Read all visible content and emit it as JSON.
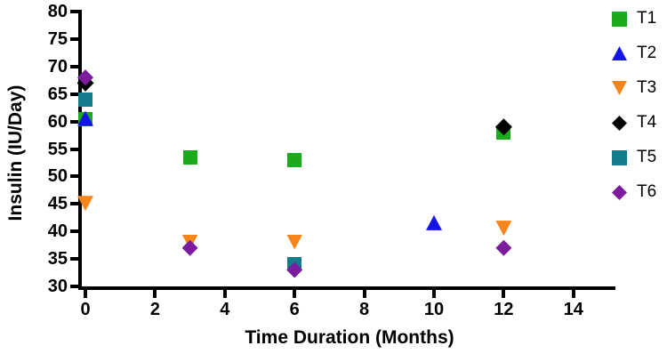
{
  "figure": {
    "background": "#ffffff",
    "axis_color": "#000000"
  },
  "chart_data": {
    "type": "scatter",
    "title": "",
    "xlabel": "Time Duration (Months)",
    "ylabel": "Insulin (IU/Day)",
    "xlim": [
      0,
      15
    ],
    "ylim": [
      30,
      80
    ],
    "grid": false,
    "legend_position": "right-outside",
    "x_ticks": [
      0,
      2,
      4,
      6,
      8,
      10,
      12,
      14
    ],
    "x_tick_labels": [
      "0",
      "2",
      "4",
      "6",
      "8",
      "10",
      "12",
      "14"
    ],
    "y_ticks": [
      80,
      75,
      70,
      65,
      60,
      55,
      50,
      45,
      40,
      35,
      30
    ],
    "y_tick_labels": [
      "80",
      "75",
      "70",
      "65",
      "60",
      "55",
      "50",
      "45",
      "40",
      "35",
      "30"
    ],
    "series": [
      {
        "name": "T1",
        "marker": "square",
        "color": "#1baa1b",
        "size": 16,
        "points": [
          [
            0,
            60.5
          ],
          [
            3,
            53.5
          ],
          [
            6,
            53
          ],
          [
            12,
            58
          ]
        ]
      },
      {
        "name": "T2",
        "marker": "triangle-up",
        "color": "#1414e8",
        "size": 18,
        "points": [
          [
            0,
            60.5
          ],
          [
            10,
            41.5
          ]
        ]
      },
      {
        "name": "T3",
        "marker": "triangle-down",
        "color": "#f8851c",
        "size": 18,
        "points": [
          [
            0,
            45
          ],
          [
            3,
            38
          ],
          [
            6,
            38
          ],
          [
            12,
            40.5
          ]
        ]
      },
      {
        "name": "T4",
        "marker": "diamond",
        "color": "#000000",
        "size": 19,
        "points": [
          [
            0,
            67
          ],
          [
            12,
            59
          ]
        ]
      },
      {
        "name": "T5",
        "marker": "square",
        "color": "#157c8e",
        "size": 16,
        "points": [
          [
            0,
            64
          ],
          [
            6,
            34
          ]
        ]
      },
      {
        "name": "T6",
        "marker": "diamond",
        "color": "#7b1c9e",
        "size": 18,
        "points": [
          [
            0,
            68
          ],
          [
            3,
            37
          ],
          [
            6,
            33
          ],
          [
            12,
            37
          ]
        ]
      }
    ],
    "legend": [
      {
        "label": "T1"
      },
      {
        "label": "T2"
      },
      {
        "label": "T3"
      },
      {
        "label": "T4"
      },
      {
        "label": "T5"
      },
      {
        "label": "T6"
      }
    ]
  }
}
